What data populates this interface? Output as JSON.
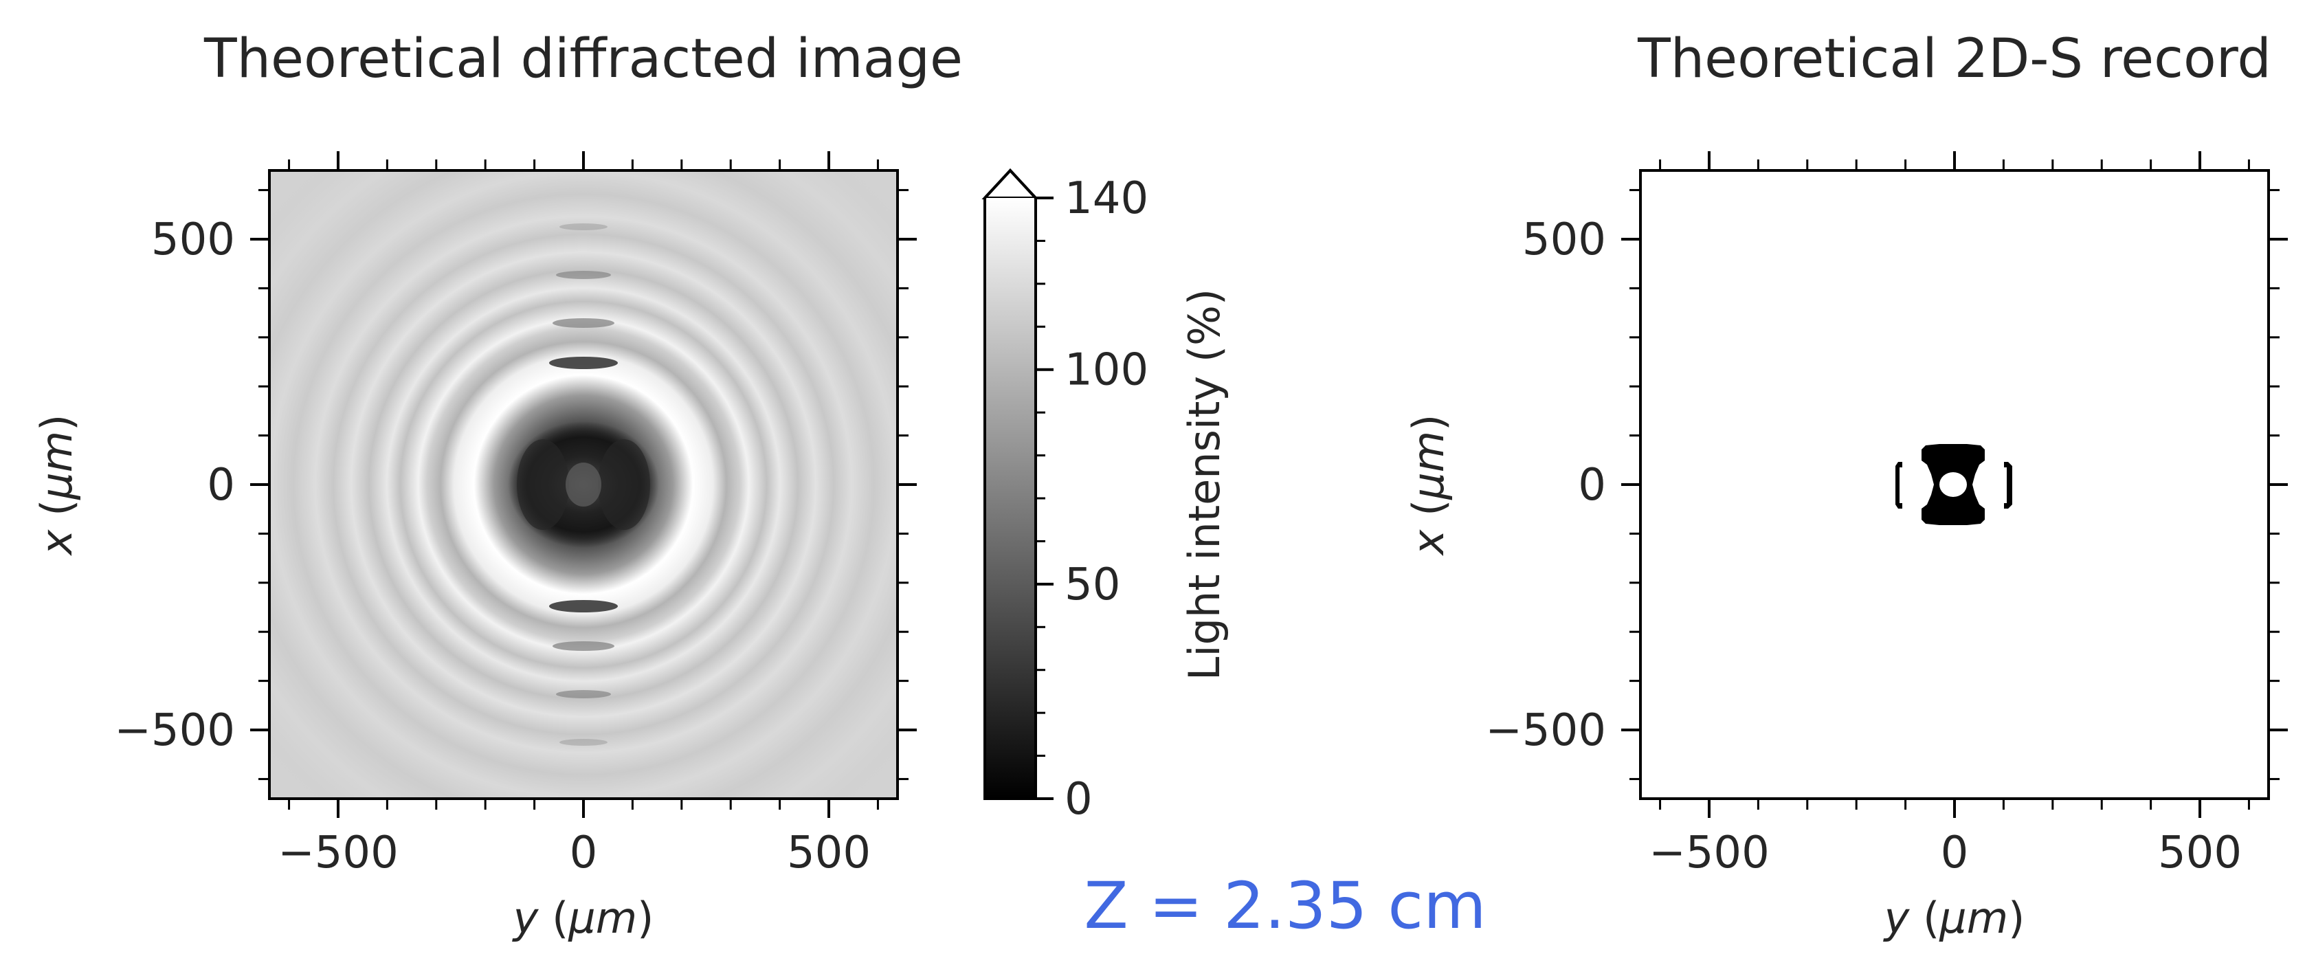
{
  "colors": {
    "background": "#d3d3d3",
    "record_background": "#ffffff",
    "record_mark": "#000000",
    "z_label": "#4169e1",
    "text": "#262626"
  },
  "z_label": "Z = 2.35 cm",
  "chart_data": [
    {
      "type": "heatmap",
      "title": "Theoretical diffracted image",
      "xlabel": "y (μm)",
      "ylabel": "x (μm)",
      "xlim": [
        -640,
        640
      ],
      "ylim": [
        -640,
        640
      ],
      "xticks": [
        -500,
        0,
        500
      ],
      "xtick_labels": [
        "−500",
        "0",
        "500"
      ],
      "yticks": [
        -500,
        0,
        500
      ],
      "ytick_labels": [
        "−500",
        "0",
        "500"
      ],
      "background_intensity": 82,
      "colorbar": {
        "label": "Light intensity (%)",
        "range": [
          0,
          140
        ],
        "ticks": [
          0,
          50,
          100,
          140
        ],
        "tick_labels": [
          "0",
          "50",
          "100",
          "140"
        ],
        "colormap": "gray",
        "extend": "max"
      }
    },
    {
      "type": "heatmap",
      "title": "Theoretical 2D-S record",
      "xlabel": "y (μm)",
      "ylabel": "x (μm)",
      "xlim": [
        -640,
        640
      ],
      "ylim": [
        -640,
        640
      ],
      "xticks": [
        -500,
        0,
        500
      ],
      "xtick_labels": [
        "−500",
        "0",
        "500"
      ],
      "yticks": [
        -500,
        0,
        500
      ],
      "ytick_labels": [
        "−500",
        "0",
        "500"
      ],
      "binary": true
    }
  ]
}
